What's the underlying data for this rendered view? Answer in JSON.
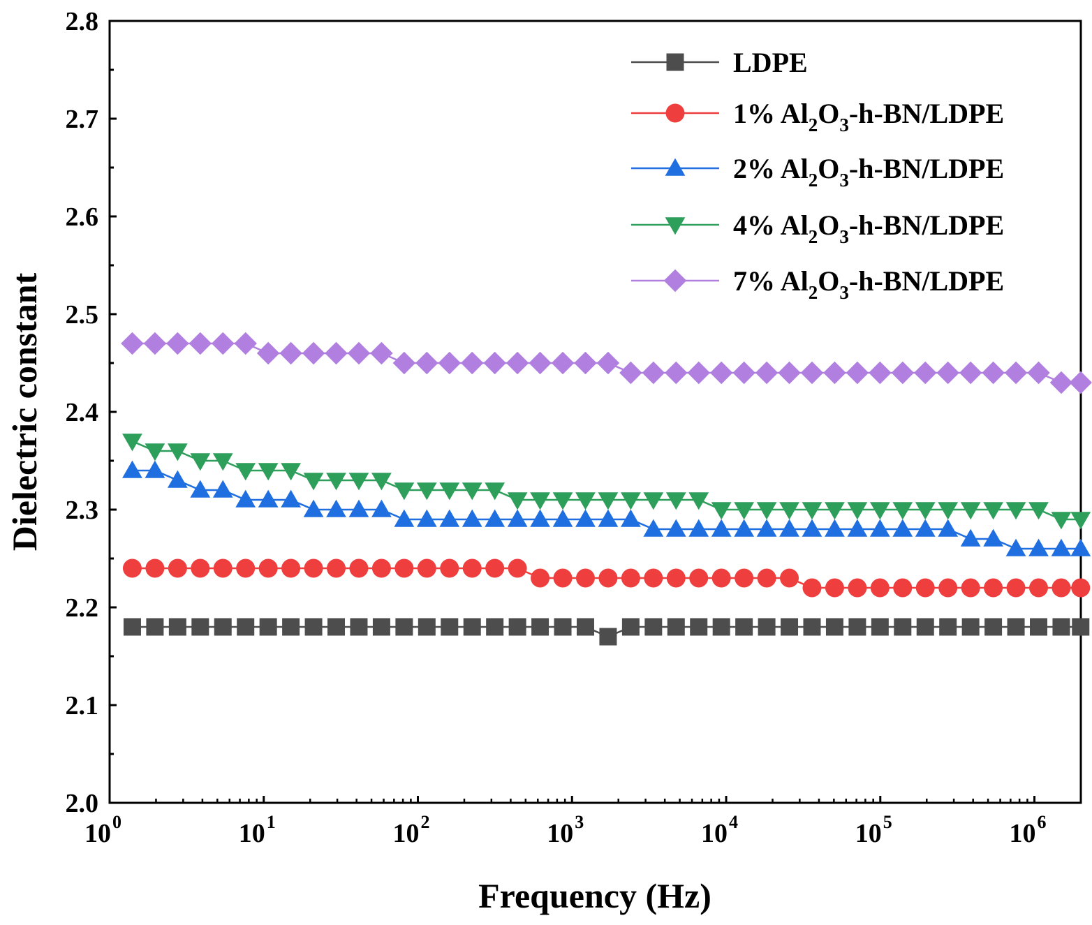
{
  "chart_data": {
    "type": "line",
    "title": "",
    "xlabel": "Frequency (Hz)",
    "ylabel": "Dielectric constant",
    "xscale": "log",
    "xlim": [
      1,
      2000000
    ],
    "ylim": [
      2.0,
      2.8
    ],
    "x_tick_base": "10",
    "x_tick_exponents": [
      "0",
      "1",
      "2",
      "3",
      "4",
      "5",
      "6"
    ],
    "y_ticks": [
      "2.0",
      "2.1",
      "2.2",
      "2.3",
      "2.4",
      "2.5",
      "2.6",
      "2.7",
      "2.8"
    ],
    "legend_position": "top-right",
    "x_log10": [
      0.147,
      0.294,
      0.441,
      0.588,
      0.735,
      0.882,
      1.029,
      1.176,
      1.323,
      1.47,
      1.617,
      1.764,
      1.911,
      2.058,
      2.205,
      2.352,
      2.499,
      2.646,
      2.793,
      2.94,
      3.087,
      3.234,
      3.381,
      3.528,
      3.675,
      3.822,
      3.969,
      4.116,
      4.263,
      4.41,
      4.557,
      4.704,
      4.851,
      4.998,
      5.145,
      5.292,
      5.439,
      5.586,
      5.733,
      5.88,
      6.027,
      6.174,
      6.3
    ],
    "series": [
      {
        "name": "LDPE",
        "label_parts": [
          "LDPE"
        ],
        "color": "#4d4d4d",
        "marker": "square",
        "values": [
          2.18,
          2.18,
          2.18,
          2.18,
          2.18,
          2.18,
          2.18,
          2.18,
          2.18,
          2.18,
          2.18,
          2.18,
          2.18,
          2.18,
          2.18,
          2.18,
          2.18,
          2.18,
          2.18,
          2.18,
          2.18,
          2.17,
          2.18,
          2.18,
          2.18,
          2.18,
          2.18,
          2.18,
          2.18,
          2.18,
          2.18,
          2.18,
          2.18,
          2.18,
          2.18,
          2.18,
          2.18,
          2.18,
          2.18,
          2.18,
          2.18,
          2.18,
          2.18
        ]
      },
      {
        "name": "1% Al2O3-h-BN/LDPE",
        "label_parts": [
          "1% Al",
          "2",
          "O",
          "3",
          "-h-BN/LDPE"
        ],
        "color": "#ef3e3e",
        "marker": "circle",
        "values": [
          2.24,
          2.24,
          2.24,
          2.24,
          2.24,
          2.24,
          2.24,
          2.24,
          2.24,
          2.24,
          2.24,
          2.24,
          2.24,
          2.24,
          2.24,
          2.24,
          2.24,
          2.24,
          2.23,
          2.23,
          2.23,
          2.23,
          2.23,
          2.23,
          2.23,
          2.23,
          2.23,
          2.23,
          2.23,
          2.23,
          2.22,
          2.22,
          2.22,
          2.22,
          2.22,
          2.22,
          2.22,
          2.22,
          2.22,
          2.22,
          2.22,
          2.22,
          2.22
        ]
      },
      {
        "name": "2% Al2O3-h-BN/LDPE",
        "label_parts": [
          "2% Al",
          "2",
          "O",
          "3",
          "-h-BN/LDPE"
        ],
        "color": "#1f6fe0",
        "marker": "triangle-up",
        "values": [
          2.34,
          2.34,
          2.33,
          2.32,
          2.32,
          2.31,
          2.31,
          2.31,
          2.3,
          2.3,
          2.3,
          2.3,
          2.29,
          2.29,
          2.29,
          2.29,
          2.29,
          2.29,
          2.29,
          2.29,
          2.29,
          2.29,
          2.29,
          2.28,
          2.28,
          2.28,
          2.28,
          2.28,
          2.28,
          2.28,
          2.28,
          2.28,
          2.28,
          2.28,
          2.28,
          2.28,
          2.28,
          2.27,
          2.27,
          2.26,
          2.26,
          2.26,
          2.26
        ]
      },
      {
        "name": "4% Al2O3-h-BN/LDPE",
        "label_parts": [
          "4% Al",
          "2",
          "O",
          "3",
          "-h-BN/LDPE"
        ],
        "color": "#2e9e5b",
        "marker": "triangle-down",
        "values": [
          2.37,
          2.36,
          2.36,
          2.35,
          2.35,
          2.34,
          2.34,
          2.34,
          2.33,
          2.33,
          2.33,
          2.33,
          2.32,
          2.32,
          2.32,
          2.32,
          2.32,
          2.31,
          2.31,
          2.31,
          2.31,
          2.31,
          2.31,
          2.31,
          2.31,
          2.31,
          2.3,
          2.3,
          2.3,
          2.3,
          2.3,
          2.3,
          2.3,
          2.3,
          2.3,
          2.3,
          2.3,
          2.3,
          2.3,
          2.3,
          2.3,
          2.29,
          2.29
        ]
      },
      {
        "name": "7% Al2O3-h-BN/LDPE",
        "label_parts": [
          "7% Al",
          "2",
          "O",
          "3",
          "-h-BN/LDPE"
        ],
        "color": "#b07fe0",
        "marker": "diamond",
        "values": [
          2.47,
          2.47,
          2.47,
          2.47,
          2.47,
          2.47,
          2.46,
          2.46,
          2.46,
          2.46,
          2.46,
          2.46,
          2.45,
          2.45,
          2.45,
          2.45,
          2.45,
          2.45,
          2.45,
          2.45,
          2.45,
          2.45,
          2.44,
          2.44,
          2.44,
          2.44,
          2.44,
          2.44,
          2.44,
          2.44,
          2.44,
          2.44,
          2.44,
          2.44,
          2.44,
          2.44,
          2.44,
          2.44,
          2.44,
          2.44,
          2.44,
          2.43,
          2.43
        ]
      }
    ]
  }
}
